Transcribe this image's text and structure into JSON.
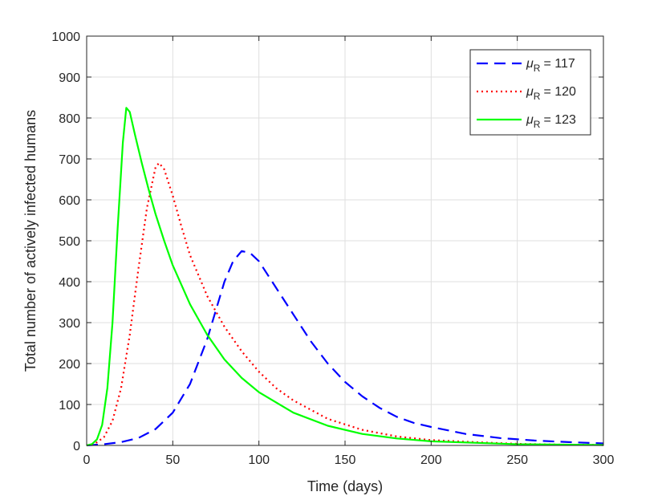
{
  "chart_data": {
    "type": "line",
    "title": "",
    "xlabel": "Time (days)",
    "ylabel": "Total number of actively infected humans",
    "xlim": [
      0,
      300
    ],
    "ylim": [
      0,
      1000
    ],
    "xticks": [
      0,
      50,
      100,
      150,
      200,
      250,
      300
    ],
    "yticks": [
      0,
      100,
      200,
      300,
      400,
      500,
      600,
      700,
      800,
      900,
      1000
    ],
    "grid": true,
    "legend_position": "top-right",
    "series": [
      {
        "name_prefix": "μ",
        "name_sub": "R",
        "name_value": "= 117",
        "color": "#0000ff",
        "style": "dashed",
        "x": [
          0,
          10,
          20,
          30,
          40,
          50,
          60,
          70,
          75,
          80,
          85,
          90,
          95,
          100,
          110,
          120,
          130,
          140,
          150,
          160,
          170,
          180,
          190,
          200,
          220,
          240,
          260,
          280,
          300
        ],
        "y": [
          0,
          3,
          8,
          18,
          40,
          80,
          150,
          260,
          330,
          400,
          450,
          475,
          470,
          450,
          385,
          320,
          255,
          200,
          155,
          120,
          92,
          70,
          55,
          45,
          28,
          18,
          12,
          8,
          5
        ]
      },
      {
        "name_prefix": "μ",
        "name_sub": "R",
        "name_value": "= 120",
        "color": "#ff0000",
        "style": "dotted",
        "x": [
          0,
          5,
          10,
          15,
          20,
          25,
          30,
          35,
          40,
          42,
          45,
          50,
          55,
          60,
          70,
          80,
          90,
          100,
          110,
          120,
          140,
          160,
          180,
          200,
          225,
          250,
          275,
          300
        ],
        "y": [
          0,
          5,
          20,
          60,
          140,
          270,
          430,
          580,
          680,
          690,
          675,
          610,
          535,
          465,
          365,
          290,
          230,
          180,
          140,
          110,
          65,
          38,
          22,
          13,
          8,
          4,
          2,
          1
        ]
      },
      {
        "name_prefix": "μ",
        "name_sub": "R",
        "name_value": "= 123",
        "color": "#00ff00",
        "style": "solid",
        "x": [
          0,
          3,
          6,
          9,
          12,
          15,
          18,
          21,
          23,
          25,
          28,
          32,
          36,
          40,
          45,
          50,
          60,
          70,
          80,
          90,
          100,
          120,
          140,
          160,
          180,
          200,
          250,
          300
        ],
        "y": [
          0,
          3,
          15,
          50,
          140,
          300,
          530,
          740,
          825,
          815,
          760,
          690,
          625,
          565,
          500,
          440,
          345,
          270,
          210,
          165,
          130,
          80,
          48,
          28,
          17,
          10,
          3,
          1
        ]
      }
    ]
  }
}
